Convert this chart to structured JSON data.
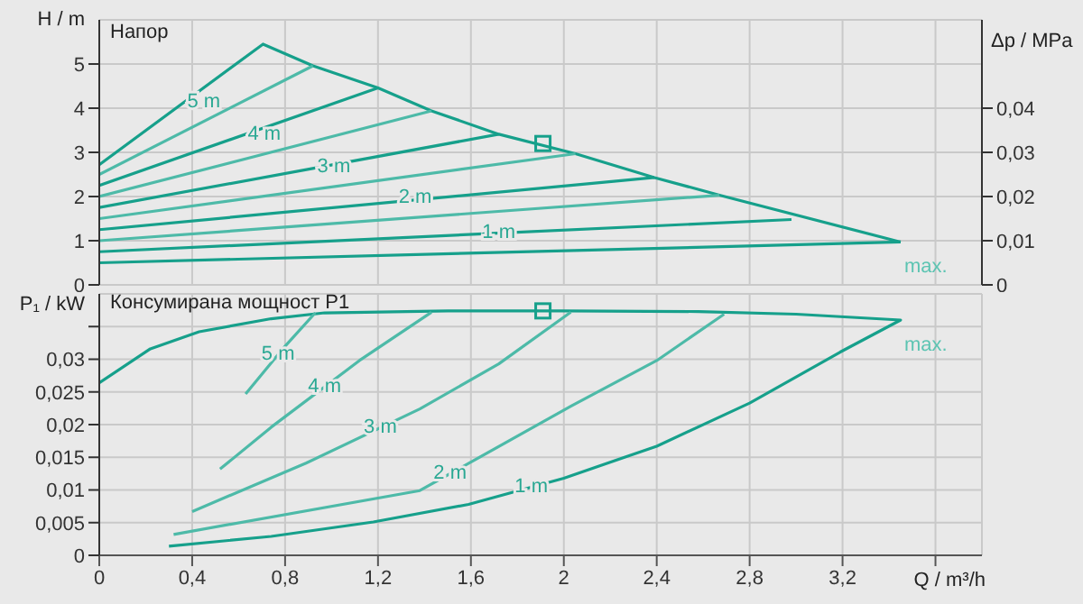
{
  "chart_data": [
    {
      "type": "line",
      "title": "Напор",
      "ylabel": "H / m",
      "y2label": "Δp / MPa",
      "xlim": [
        0,
        3.8
      ],
      "xticks": [
        0,
        0.4,
        0.8,
        1.2,
        1.6,
        2,
        2.4,
        2.8,
        3.2,
        3.6
      ],
      "ylim": [
        0,
        6
      ],
      "yticks": [
        0,
        1,
        2,
        3,
        4,
        5
      ],
      "y2lim": [
        0,
        0.06
      ],
      "y2ticks": [
        0,
        {
          "value": 0.01,
          "label": "0,01"
        },
        {
          "value": 0.02,
          "label": "0,02"
        },
        {
          "value": 0.03,
          "label": "0,03"
        },
        {
          "value": 0.04,
          "label": "0,04"
        }
      ],
      "tick_labels": "y",
      "grid": true,
      "legend": false,
      "marker": "none",
      "line_style": "solid",
      "series": [
        {
          "color": "#16a08b",
          "x": [
            0,
            0.705,
            0.92,
            1.2,
            1.43,
            1.72,
            2.05,
            2.39,
            2.67,
            3.45
          ],
          "values": [
            2.72,
            5.45,
            4.96,
            4.46,
            3.94,
            3.41,
            2.97,
            2.43,
            2.03,
            0.97
          ]
        },
        {
          "color": "#4dbaa8",
          "x": [
            0,
            0.92
          ],
          "values": [
            2.5,
            4.96
          ]
        },
        {
          "color": "#16a08b",
          "x": [
            0,
            1.2
          ],
          "values": [
            2.25,
            4.46
          ]
        },
        {
          "color": "#4dbaa8",
          "x": [
            0,
            1.43
          ],
          "values": [
            2.0,
            3.94
          ]
        },
        {
          "color": "#16a08b",
          "x": [
            0,
            1.72
          ],
          "values": [
            1.75,
            3.41
          ]
        },
        {
          "color": "#4dbaa8",
          "x": [
            0,
            2.05
          ],
          "values": [
            1.5,
            2.97
          ]
        },
        {
          "color": "#16a08b",
          "x": [
            0,
            2.39
          ],
          "values": [
            1.25,
            2.43
          ]
        },
        {
          "color": "#4dbaa8",
          "x": [
            0,
            2.67
          ],
          "values": [
            1.0,
            2.03
          ]
        },
        {
          "color": "#16a08b",
          "x": [
            0,
            2.98
          ],
          "values": [
            0.75,
            1.48
          ]
        },
        {
          "color": "#16a08b",
          "x": [
            0,
            3.45
          ],
          "values": [
            0.5,
            0.97
          ]
        },
        {
          "type": "scatter",
          "marker": "square",
          "color": "#16a08b",
          "x": [
            1.91
          ],
          "values": [
            3.2
          ]
        }
      ],
      "annotations": [
        {
          "text": "5 m",
          "x": 0.45,
          "y": 3.7
        },
        {
          "text": "4 m",
          "x": 0.71,
          "y": 2.96
        },
        {
          "text": "3 m",
          "x": 1.01,
          "y": 2.22
        },
        {
          "text": "2 m",
          "x": 1.36,
          "y": 1.52
        },
        {
          "text": "1 m",
          "x": 1.72,
          "y": 0.73
        },
        "max."
      ]
    },
    {
      "type": "line",
      "title": "Консумирана мощност P1",
      "ylabel": "P₁ / kW",
      "xlabel": "Q / m³/h",
      "xlim": [
        0,
        3.8
      ],
      "xticks": [
        0,
        {
          "value": 0.4,
          "label": "0,4"
        },
        {
          "value": 0.8,
          "label": "0,8"
        },
        {
          "value": 1.2,
          "label": "1,2"
        },
        {
          "value": 1.6,
          "label": "1,6"
        },
        2,
        {
          "value": 2.4,
          "label": "2,4"
        },
        {
          "value": 2.8,
          "label": "2,8"
        },
        {
          "value": 3.2,
          "label": "3,2"
        },
        {
          "value": 3.6,
          "label": null
        }
      ],
      "ylim": [
        0,
        0.04
      ],
      "yticks": [
        0,
        {
          "value": 0.005,
          "label": "0,005"
        },
        {
          "value": 0.01,
          "label": "0,01"
        },
        {
          "value": 0.015,
          "label": "0,015"
        },
        {
          "value": 0.02,
          "label": "0,02"
        },
        {
          "value": 0.025,
          "label": "0,025"
        },
        {
          "value": 0.03,
          "label": "0,03"
        },
        {
          "value": 0.035,
          "label": null
        }
      ],
      "grid": true,
      "legend": false,
      "marker": "none",
      "line_style": "solid",
      "series": [
        {
          "color": "#16a08b",
          "x": [
            0,
            0.22,
            0.43,
            0.74,
            0.97,
            1.5,
            2.0,
            2.58,
            3.0,
            3.45,
            3.19,
            2.8,
            2.4,
            2.0,
            1.59,
            1.18,
            0.74,
            0.3
          ],
          "values": [
            0.0264,
            0.0316,
            0.0342,
            0.0362,
            0.0371,
            0.0374,
            0.0374,
            0.0373,
            0.0369,
            0.036,
            0.0311,
            0.0233,
            0.0167,
            0.0118,
            0.0078,
            0.0051,
            0.0029,
            0.0014
          ]
        },
        {
          "color": "#4dbaa8",
          "x": [
            0.63,
            0.79,
            0.93
          ],
          "values": [
            0.0247,
            0.0316,
            0.0371
          ]
        },
        {
          "color": "#4dbaa8",
          "x": [
            0.52,
            0.74,
            1.12,
            1.43
          ],
          "values": [
            0.0132,
            0.0196,
            0.0298,
            0.0372
          ]
        },
        {
          "color": "#4dbaa8",
          "x": [
            0.4,
            0.89,
            1.38,
            1.72,
            2.03
          ],
          "values": [
            0.0067,
            0.0141,
            0.0224,
            0.0293,
            0.0372
          ]
        },
        {
          "color": "#4dbaa8",
          "x": [
            0.32,
            1.38,
            2.03,
            2.4,
            2.69
          ],
          "values": [
            0.0032,
            0.0099,
            0.0228,
            0.0298,
            0.0369
          ]
        },
        {
          "type": "scatter",
          "marker": "square",
          "color": "#16a08b",
          "x": [
            1.91
          ],
          "values": [
            0.0374
          ]
        }
      ],
      "annotations": [
        {
          "text": "5 m",
          "x": 0.77,
          "y": 0.0307
        },
        {
          "text": "4 m",
          "x": 0.97,
          "y": 0.0258
        },
        {
          "text": "3 m",
          "x": 1.21,
          "y": 0.0195
        },
        {
          "text": "2 m",
          "x": 1.51,
          "y": 0.0125
        },
        {
          "text": "1 m",
          "x": 1.86,
          "y": 0.0104
        },
        "max."
      ]
    }
  ]
}
